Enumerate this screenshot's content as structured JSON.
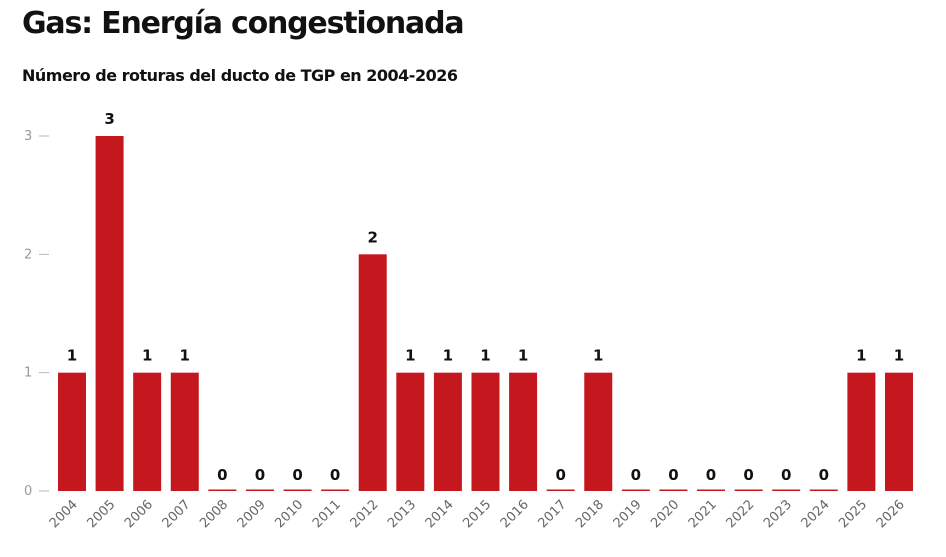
{
  "chart_data": {
    "type": "bar",
    "title": "Gas: Energía congestionada",
    "subtitle": "Número de roturas del ducto de TGP en 2004-2026",
    "categories": [
      "2004",
      "2005",
      "2006",
      "2007",
      "2008",
      "2009",
      "2010",
      "2011",
      "2012",
      "2013",
      "2014",
      "2015",
      "2016",
      "2017",
      "2018",
      "2019",
      "2020",
      "2021",
      "2022",
      "2023",
      "2024",
      "2025",
      "2026"
    ],
    "values": [
      1,
      3,
      1,
      1,
      0,
      0,
      0,
      0,
      2,
      1,
      1,
      1,
      1,
      0,
      1,
      0,
      0,
      0,
      0,
      0,
      0,
      1,
      1
    ],
    "yticks": [
      0,
      1,
      2,
      3
    ],
    "ylim": [
      0,
      3
    ],
    "xlabel": "",
    "ylabel": "",
    "bar_color": "#c4171e"
  }
}
